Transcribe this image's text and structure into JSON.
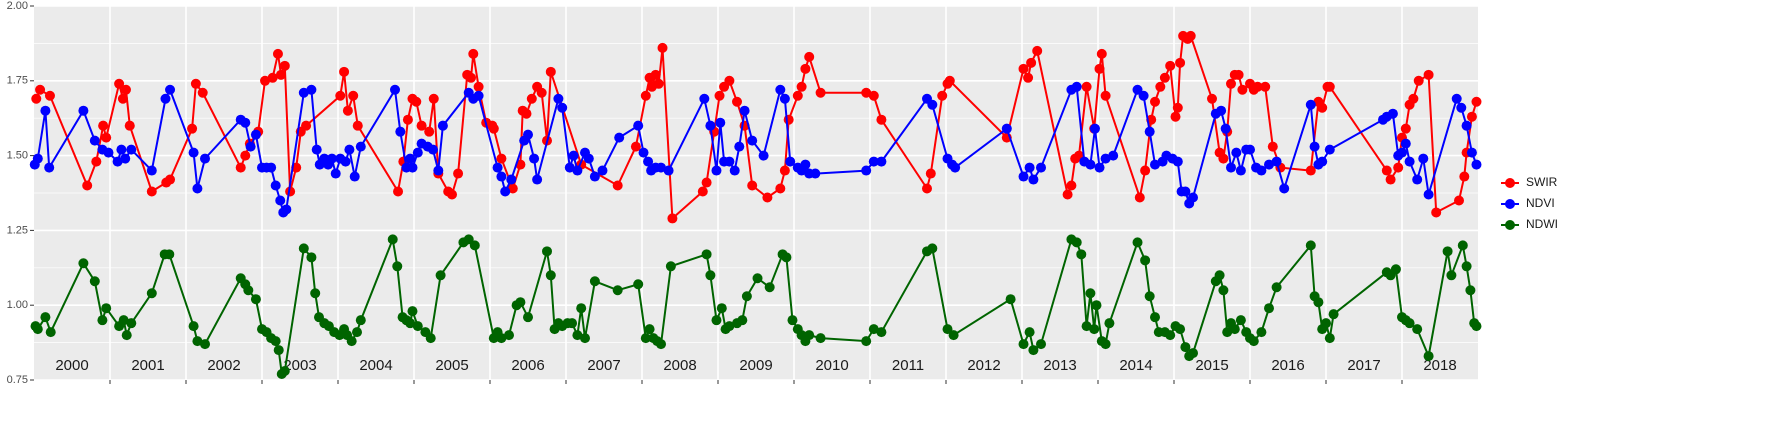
{
  "chart_data": {
    "type": "line",
    "xlim": [
      2000,
      2019
    ],
    "xticks": [
      2001,
      2002,
      2003,
      2004,
      2005,
      2006,
      2007,
      2008,
      2009,
      2010,
      2011,
      2012,
      2013,
      2014,
      2015,
      2016,
      2017,
      2018
    ],
    "year_labels": [
      "2000",
      "2001",
      "2002",
      "2003",
      "2004",
      "2005",
      "2006",
      "2007",
      "2008",
      "2009",
      "2010",
      "2011",
      "2012",
      "2013",
      "2014",
      "2015",
      "2016",
      "2017",
      "2018"
    ],
    "ylim": [
      0.75,
      2.0
    ],
    "yticks": [
      0.75,
      {
        "value": 1,
        "label": "1.00"
      },
      {
        "value": 1.25,
        "label": "1.25"
      },
      {
        "value": 1.5,
        "label": "1.50"
      },
      {
        "value": 1.75,
        "label": "1.75"
      },
      {
        "value": 2,
        "label": "2.00"
      }
    ],
    "grid": true,
    "legend": "right",
    "series": [
      {
        "name": "SWIR",
        "color": "#ff0000",
        "x": [
          2000.03,
          2000.08,
          2000.21,
          2000.7,
          2000.82,
          2000.91,
          2000.95,
          2001.12,
          2001.17,
          2001.21,
          2001.26,
          2001.55,
          2001.74,
          2001.79,
          2002.08,
          2002.13,
          2002.22,
          2002.72,
          2002.78,
          2002.84,
          2002.95,
          2003.04,
          2003.14,
          2003.21,
          2003.25,
          2003.3,
          2003.37,
          2003.45,
          2003.51,
          2003.58,
          2004.03,
          2004.08,
          2004.13,
          2004.2,
          2004.26,
          2004.79,
          2004.86,
          2004.92,
          2004.98,
          2005.03,
          2005.1,
          2005.2,
          2005.26,
          2005.32,
          2005.45,
          2005.5,
          2005.58,
          2005.7,
          2005.75,
          2005.78,
          2005.85,
          2005.95,
          2006.03,
          2006.05,
          2006.15,
          2006.3,
          2006.4,
          2006.43,
          2006.48,
          2006.55,
          2006.62,
          2006.68,
          2006.75,
          2006.8,
          2007.2,
          2007.68,
          2007.92,
          2008.05,
          2008.1,
          2008.13,
          2008.18,
          2008.22,
          2008.27,
          2008.4,
          2008.8,
          2008.85,
          2008.95,
          2009.02,
          2009.08,
          2009.15,
          2009.25,
          2009.35,
          2009.45,
          2009.65,
          2009.82,
          2009.88,
          2009.93,
          2010.05,
          2010.1,
          2010.15,
          2010.2,
          2010.35,
          2010.95,
          2011.05,
          2011.15,
          2011.75,
          2011.8,
          2011.95,
          2012.02,
          2012.05,
          2012.8,
          2013.02,
          2013.08,
          2013.12,
          2013.2,
          2013.6,
          2013.65,
          2013.7,
          2013.75,
          2013.85,
          2013.95,
          2014.02,
          2014.05,
          2014.1,
          2014.55,
          2014.62,
          2014.7,
          2014.75,
          2014.82,
          2014.88,
          2014.95,
          2015.02,
          2015.05,
          2015.08,
          2015.12,
          2015.18,
          2015.22,
          2015.5,
          2015.6,
          2015.65,
          2015.7,
          2015.75,
          2015.8,
          2015.85,
          2015.9,
          2016.0,
          2016.05,
          2016.1,
          2016.2,
          2016.3,
          2016.4,
          2016.8,
          2016.9,
          2016.95,
          2017.02,
          2017.05,
          2017.8,
          2017.85,
          2017.95,
          2018.0,
          2018.05,
          2018.1,
          2018.15,
          2018.22,
          2018.35,
          2018.45,
          2018.75,
          2018.82,
          2018.85,
          2018.92,
          2018.98
        ],
        "values": [
          1.69,
          1.72,
          1.7,
          1.4,
          1.48,
          1.6,
          1.56,
          1.74,
          1.69,
          1.72,
          1.6,
          1.38,
          1.41,
          1.42,
          1.59,
          1.74,
          1.71,
          1.46,
          1.5,
          1.54,
          1.58,
          1.75,
          1.76,
          1.84,
          1.77,
          1.8,
          1.38,
          1.46,
          1.58,
          1.6,
          1.7,
          1.78,
          1.65,
          1.7,
          1.6,
          1.38,
          1.48,
          1.62,
          1.69,
          1.68,
          1.6,
          1.58,
          1.69,
          1.44,
          1.38,
          1.37,
          1.44,
          1.77,
          1.76,
          1.84,
          1.73,
          1.61,
          1.6,
          1.59,
          1.49,
          1.39,
          1.47,
          1.65,
          1.64,
          1.69,
          1.73,
          1.71,
          1.55,
          1.78,
          1.47,
          1.4,
          1.53,
          1.7,
          1.76,
          1.73,
          1.77,
          1.74,
          1.86,
          1.29,
          1.38,
          1.41,
          1.58,
          1.7,
          1.73,
          1.75,
          1.68,
          1.6,
          1.4,
          1.36,
          1.39,
          1.45,
          1.62,
          1.7,
          1.73,
          1.79,
          1.83,
          1.71,
          1.71,
          1.7,
          1.62,
          1.39,
          1.44,
          1.7,
          1.74,
          1.75,
          1.56,
          1.79,
          1.76,
          1.81,
          1.85,
          1.37,
          1.4,
          1.49,
          1.5,
          1.73,
          1.59,
          1.79,
          1.84,
          1.7,
          1.36,
          1.45,
          1.62,
          1.68,
          1.73,
          1.76,
          1.8,
          1.63,
          1.66,
          1.81,
          1.9,
          1.89,
          1.9,
          1.69,
          1.51,
          1.49,
          1.58,
          1.74,
          1.77,
          1.77,
          1.72,
          1.74,
          1.72,
          1.73,
          1.73,
          1.53,
          1.46,
          1.45,
          1.68,
          1.66,
          1.73,
          1.73,
          1.45,
          1.42,
          1.46,
          1.56,
          1.59,
          1.67,
          1.69,
          1.75,
          1.77,
          1.31,
          1.35,
          1.43,
          1.51,
          1.63,
          1.68
        ]
      },
      {
        "name": "NDVI",
        "color": "#0000ff",
        "x": [
          2000.01,
          2000.05,
          2000.15,
          2000.2,
          2000.65,
          2000.8,
          2000.9,
          2000.98,
          2001.1,
          2001.15,
          2001.2,
          2001.28,
          2001.55,
          2001.73,
          2001.79,
          2002.1,
          2002.15,
          2002.25,
          2002.72,
          2002.78,
          2002.85,
          2002.92,
          2003.0,
          2003.06,
          2003.12,
          2003.18,
          2003.24,
          2003.28,
          2003.32,
          2003.55,
          2003.65,
          2003.72,
          2003.76,
          2003.82,
          2003.87,
          2003.92,
          2003.97,
          2004.03,
          2004.1,
          2004.15,
          2004.22,
          2004.3,
          2004.75,
          2004.82,
          2004.9,
          2004.95,
          2004.98,
          2005.05,
          2005.1,
          2005.18,
          2005.25,
          2005.32,
          2005.38,
          2005.72,
          2005.78,
          2005.85,
          2006.1,
          2006.15,
          2006.2,
          2006.28,
          2006.45,
          2006.5,
          2006.58,
          2006.62,
          2006.9,
          2006.95,
          2007.05,
          2007.1,
          2007.15,
          2007.25,
          2007.3,
          2007.38,
          2007.48,
          2007.7,
          2007.95,
          2008.02,
          2008.08,
          2008.12,
          2008.18,
          2008.25,
          2008.35,
          2008.82,
          2008.9,
          2008.98,
          2009.03,
          2009.08,
          2009.15,
          2009.22,
          2009.28,
          2009.35,
          2009.45,
          2009.6,
          2009.82,
          2009.88,
          2009.95,
          2010.05,
          2010.1,
          2010.15,
          2010.2,
          2010.28,
          2010.95,
          2011.05,
          2011.15,
          2011.75,
          2011.82,
          2012.02,
          2012.08,
          2012.12,
          2012.8,
          2013.02,
          2013.1,
          2013.15,
          2013.25,
          2013.65,
          2013.72,
          2013.82,
          2013.9,
          2013.96,
          2014.02,
          2014.1,
          2014.2,
          2014.52,
          2014.6,
          2014.68,
          2014.75,
          2014.85,
          2014.9,
          2014.98,
          2015.05,
          2015.1,
          2015.15,
          2015.2,
          2015.25,
          2015.55,
          2015.62,
          2015.68,
          2015.75,
          2015.82,
          2015.88,
          2015.95,
          2016.0,
          2016.08,
          2016.15,
          2016.25,
          2016.35,
          2016.45,
          2016.8,
          2016.85,
          2016.9,
          2016.95,
          2017.05,
          2017.75,
          2017.8,
          2017.88,
          2017.95,
          2018.0,
          2018.05,
          2018.1,
          2018.2,
          2018.28,
          2018.35,
          2018.72,
          2018.78,
          2018.85,
          2018.92,
          2018.98
        ],
        "values": [
          1.47,
          1.49,
          1.65,
          1.46,
          1.65,
          1.55,
          1.52,
          1.51,
          1.48,
          1.52,
          1.49,
          1.52,
          1.45,
          1.69,
          1.72,
          1.51,
          1.39,
          1.49,
          1.62,
          1.61,
          1.53,
          1.57,
          1.46,
          1.46,
          1.46,
          1.4,
          1.35,
          1.31,
          1.32,
          1.71,
          1.72,
          1.52,
          1.47,
          1.49,
          1.47,
          1.49,
          1.44,
          1.49,
          1.48,
          1.52,
          1.43,
          1.53,
          1.72,
          1.58,
          1.46,
          1.49,
          1.46,
          1.51,
          1.54,
          1.53,
          1.52,
          1.45,
          1.6,
          1.71,
          1.69,
          1.7,
          1.46,
          1.43,
          1.38,
          1.42,
          1.55,
          1.57,
          1.49,
          1.42,
          1.69,
          1.66,
          1.46,
          1.5,
          1.45,
          1.51,
          1.49,
          1.43,
          1.45,
          1.56,
          1.6,
          1.51,
          1.48,
          1.45,
          1.46,
          1.46,
          1.45,
          1.69,
          1.6,
          1.45,
          1.61,
          1.48,
          1.48,
          1.45,
          1.53,
          1.65,
          1.55,
          1.5,
          1.72,
          1.69,
          1.48,
          1.46,
          1.45,
          1.47,
          1.44,
          1.44,
          1.45,
          1.48,
          1.48,
          1.69,
          1.67,
          1.49,
          1.47,
          1.46,
          1.59,
          1.43,
          1.46,
          1.42,
          1.46,
          1.72,
          1.73,
          1.48,
          1.47,
          1.59,
          1.46,
          1.49,
          1.5,
          1.72,
          1.7,
          1.58,
          1.47,
          1.48,
          1.5,
          1.49,
          1.48,
          1.38,
          1.38,
          1.34,
          1.36,
          1.64,
          1.65,
          1.59,
          1.46,
          1.51,
          1.45,
          1.52,
          1.52,
          1.46,
          1.45,
          1.47,
          1.48,
          1.39,
          1.67,
          1.53,
          1.47,
          1.48,
          1.52,
          1.62,
          1.63,
          1.64,
          1.5,
          1.51,
          1.54,
          1.48,
          1.42,
          1.49,
          1.37,
          1.69,
          1.66,
          1.6,
          1.51,
          1.47
        ]
      },
      {
        "name": "NDWI",
        "color": "#006400",
        "x": [
          2000.02,
          2000.05,
          2000.15,
          2000.22,
          2000.65,
          2000.8,
          2000.9,
          2000.95,
          2001.12,
          2001.18,
          2001.22,
          2001.28,
          2001.55,
          2001.72,
          2001.78,
          2002.1,
          2002.15,
          2002.25,
          2002.72,
          2002.78,
          2002.82,
          2002.92,
          2003.0,
          2003.06,
          2003.12,
          2003.18,
          2003.22,
          2003.26,
          2003.3,
          2003.55,
          2003.65,
          2003.7,
          2003.75,
          2003.82,
          2003.88,
          2003.95,
          2004.02,
          2004.08,
          2004.12,
          2004.18,
          2004.25,
          2004.3,
          2004.72,
          2004.78,
          2004.85,
          2004.9,
          2004.95,
          2004.98,
          2005.05,
          2005.15,
          2005.22,
          2005.35,
          2005.65,
          2005.72,
          2005.8,
          2006.05,
          2006.1,
          2006.15,
          2006.25,
          2006.35,
          2006.4,
          2006.5,
          2006.75,
          2006.8,
          2006.85,
          2006.9,
          2006.95,
          2007.02,
          2007.08,
          2007.15,
          2007.2,
          2007.25,
          2007.38,
          2007.68,
          2007.95,
          2008.05,
          2008.1,
          2008.15,
          2008.2,
          2008.25,
          2008.38,
          2008.85,
          2008.9,
          2008.98,
          2009.05,
          2009.1,
          2009.15,
          2009.25,
          2009.32,
          2009.38,
          2009.52,
          2009.68,
          2009.85,
          2009.9,
          2009.98,
          2010.05,
          2010.1,
          2010.15,
          2010.2,
          2010.35,
          2010.95,
          2011.05,
          2011.15,
          2011.75,
          2011.82,
          2012.02,
          2012.1,
          2012.85,
          2013.02,
          2013.1,
          2013.15,
          2013.25,
          2013.65,
          2013.72,
          2013.78,
          2013.85,
          2013.9,
          2013.95,
          2013.98,
          2014.05,
          2014.1,
          2014.15,
          2014.52,
          2014.62,
          2014.68,
          2014.75,
          2014.8,
          2014.88,
          2014.95,
          2015.02,
          2015.08,
          2015.15,
          2015.2,
          2015.25,
          2015.55,
          2015.6,
          2015.65,
          2015.7,
          2015.75,
          2015.8,
          2015.88,
          2015.95,
          2016.0,
          2016.05,
          2016.15,
          2016.25,
          2016.35,
          2016.8,
          2016.85,
          2016.9,
          2016.95,
          2017.0,
          2017.05,
          2017.1,
          2017.8,
          2017.85,
          2017.92,
          2018.0,
          2018.05,
          2018.1,
          2018.2,
          2018.35,
          2018.6,
          2018.65,
          2018.8,
          2018.85,
          2018.9,
          2018.95,
          2018.98
        ],
        "values": [
          0.93,
          0.92,
          0.96,
          0.91,
          1.14,
          1.08,
          0.95,
          0.99,
          0.93,
          0.95,
          0.9,
          0.94,
          1.04,
          1.17,
          1.17,
          0.93,
          0.88,
          0.87,
          1.09,
          1.07,
          1.05,
          1.02,
          0.92,
          0.91,
          0.89,
          0.88,
          0.85,
          0.77,
          0.78,
          1.19,
          1.16,
          1.04,
          0.96,
          0.94,
          0.93,
          0.91,
          0.9,
          0.92,
          0.9,
          0.88,
          0.91,
          0.95,
          1.22,
          1.13,
          0.96,
          0.95,
          0.94,
          0.98,
          0.93,
          0.91,
          0.89,
          1.1,
          1.21,
          1.22,
          1.2,
          0.89,
          0.91,
          0.89,
          0.9,
          1.0,
          1.01,
          0.96,
          1.18,
          1.1,
          0.92,
          0.94,
          0.93,
          0.94,
          0.94,
          0.9,
          0.99,
          0.89,
          1.08,
          1.05,
          1.07,
          0.89,
          0.92,
          0.89,
          0.88,
          0.87,
          1.13,
          1.17,
          1.1,
          0.95,
          0.99,
          0.92,
          0.93,
          0.94,
          0.95,
          1.03,
          1.09,
          1.06,
          1.17,
          1.16,
          0.95,
          0.92,
          0.9,
          0.88,
          0.9,
          0.89,
          0.88,
          0.92,
          0.91,
          1.18,
          1.19,
          0.92,
          0.9,
          1.02,
          0.87,
          0.91,
          0.85,
          0.87,
          1.22,
          1.21,
          1.17,
          0.93,
          1.04,
          0.92,
          1.0,
          0.88,
          0.87,
          0.94,
          1.21,
          1.15,
          1.03,
          0.96,
          0.91,
          0.91,
          0.9,
          0.93,
          0.92,
          0.86,
          0.83,
          0.84,
          1.08,
          1.1,
          1.05,
          0.91,
          0.94,
          0.92,
          0.95,
          0.91,
          0.89,
          0.88,
          0.91,
          0.99,
          1.06,
          1.2,
          1.03,
          1.01,
          0.92,
          0.94,
          0.89,
          0.97,
          1.11,
          1.1,
          1.12,
          0.96,
          0.95,
          0.94,
          0.92,
          0.83,
          1.18,
          1.1,
          1.2,
          1.13,
          1.05,
          0.94,
          0.93
        ]
      }
    ]
  }
}
